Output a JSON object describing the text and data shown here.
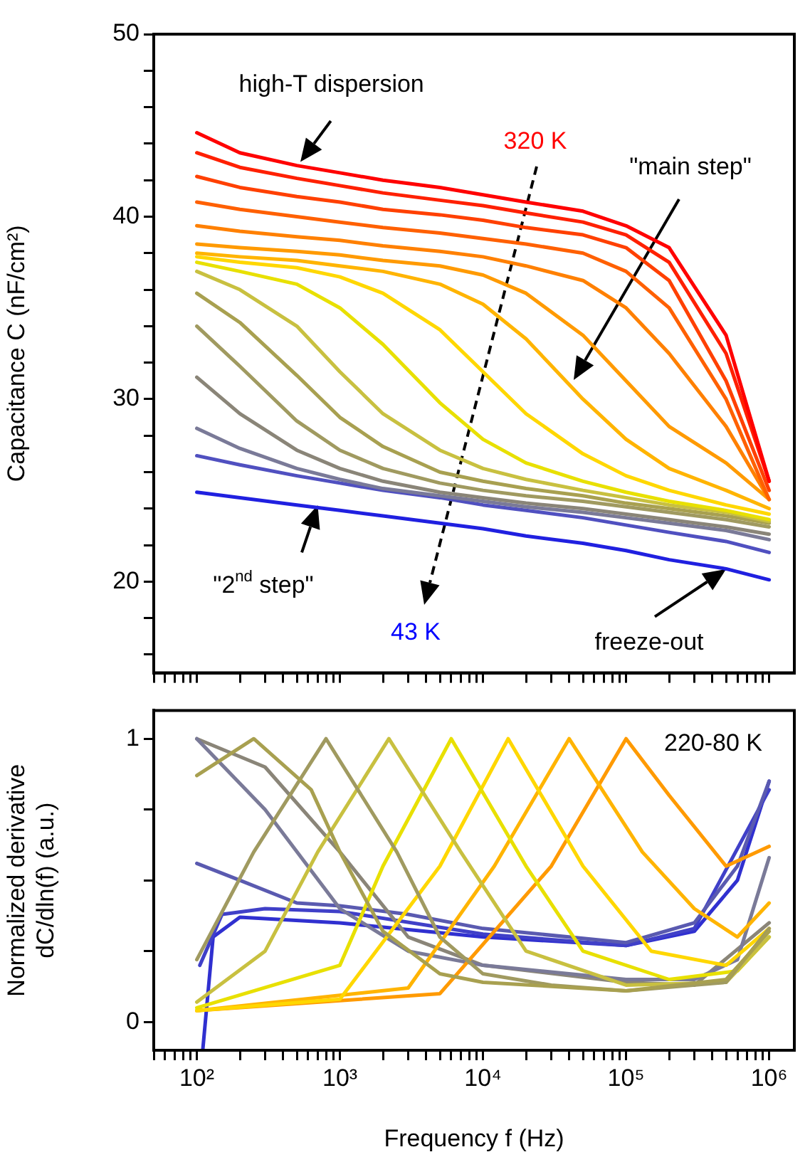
{
  "chart_data": [
    {
      "type": "line",
      "ylabel": "Capacitance C (nF/cm²)",
      "log": "x",
      "legend": false,
      "tick_labels": "y",
      "xlim": [
        50,
        1500000
      ],
      "ylim": [
        15,
        50
      ],
      "xticks": [
        {
          "value": 50,
          "label": null
        },
        {
          "value": 60,
          "label": null
        },
        {
          "value": 70,
          "label": null
        },
        {
          "value": 80,
          "label": null
        },
        {
          "value": 90,
          "label": null
        },
        {
          "value": 100,
          "label": null
        },
        {
          "value": 200,
          "label": null
        },
        {
          "value": 300,
          "label": null
        },
        {
          "value": 400,
          "label": null
        },
        {
          "value": 500,
          "label": null
        },
        {
          "value": 600,
          "label": null
        },
        {
          "value": 700,
          "label": null
        },
        {
          "value": 800,
          "label": null
        },
        {
          "value": 900,
          "label": null
        },
        {
          "value": 1000,
          "label": null
        },
        {
          "value": 2000,
          "label": null
        },
        {
          "value": 3000,
          "label": null
        },
        {
          "value": 4000,
          "label": null
        },
        {
          "value": 5000,
          "label": null
        },
        {
          "value": 6000,
          "label": null
        },
        {
          "value": 7000,
          "label": null
        },
        {
          "value": 8000,
          "label": null
        },
        {
          "value": 9000,
          "label": null
        },
        {
          "value": 10000,
          "label": null
        },
        {
          "value": 20000,
          "label": null
        },
        {
          "value": 30000,
          "label": null
        },
        {
          "value": 40000,
          "label": null
        },
        {
          "value": 50000,
          "label": null
        },
        {
          "value": 60000,
          "label": null
        },
        {
          "value": 70000,
          "label": null
        },
        {
          "value": 80000,
          "label": null
        },
        {
          "value": 90000,
          "label": null
        },
        {
          "value": 100000,
          "label": null
        },
        {
          "value": 200000,
          "label": null
        },
        {
          "value": 300000,
          "label": null
        },
        {
          "value": 400000,
          "label": null
        },
        {
          "value": 500000,
          "label": null
        },
        {
          "value": 600000,
          "label": null
        },
        {
          "value": 700000,
          "label": null
        },
        {
          "value": 800000,
          "label": null
        },
        {
          "value": 900000,
          "label": null
        },
        {
          "value": 1000000,
          "label": null
        }
      ],
      "yticks": [
        {
          "value": 16,
          "label": null
        },
        {
          "value": 18,
          "label": null
        },
        20,
        {
          "value": 22,
          "label": null
        },
        {
          "value": 24,
          "label": null
        },
        {
          "value": 26,
          "label": null
        },
        {
          "value": 28,
          "label": null
        },
        30,
        {
          "value": 32,
          "label": null
        },
        {
          "value": 34,
          "label": null
        },
        {
          "value": 36,
          "label": null
        },
        {
          "value": 38,
          "label": null
        },
        40,
        {
          "value": 42,
          "label": null
        },
        {
          "value": 44,
          "label": null
        },
        {
          "value": 46,
          "label": null
        },
        {
          "value": 48,
          "label": null
        },
        50
      ],
      "annotations": [
        {
          "text": "high-T dispersion",
          "x": 525,
          "y": 43.0
        },
        "320 K",
        "\"main step\"",
        {
          "text": "\"2$^{nd}$ step\"",
          "x": 700,
          "y": 24.2
        },
        "43 K",
        {
          "text": "freeze-out",
          "x": 500000,
          "y": 20.7
        }
      ],
      "x": [
        100,
        200,
        500,
        1000,
        2000,
        5000,
        10000,
        20000,
        50000,
        100000,
        200000,
        500000,
        1000000
      ],
      "series": [
        {
          "color": "#ff0000",
          "values": [
            44.6,
            43.5,
            42.8,
            42.4,
            42.0,
            41.6,
            41.2,
            40.8,
            40.3,
            39.5,
            38.3,
            33.5,
            25.5
          ]
        },
        {
          "color": "#ff2000",
          "values": [
            43.5,
            42.7,
            42.1,
            41.7,
            41.3,
            40.9,
            40.6,
            40.2,
            39.7,
            39.0,
            37.5,
            32.5,
            25.5
          ]
        },
        {
          "color": "#ff4000",
          "values": [
            42.2,
            41.6,
            41.1,
            40.8,
            40.4,
            40.1,
            39.8,
            39.4,
            39.0,
            38.3,
            36.5,
            31.0,
            25.0
          ]
        },
        {
          "color": "#ff6000",
          "values": [
            40.8,
            40.4,
            40.0,
            39.7,
            39.4,
            39.1,
            38.8,
            38.5,
            38.0,
            37.0,
            35.0,
            30.0,
            24.5
          ]
        },
        {
          "color": "#ff8000",
          "values": [
            39.5,
            39.2,
            38.9,
            38.7,
            38.4,
            38.1,
            37.8,
            37.3,
            36.5,
            35.0,
            32.5,
            28.5,
            24.5
          ]
        },
        {
          "color": "#ff9a00",
          "values": [
            38.5,
            38.3,
            38.1,
            37.9,
            37.6,
            37.3,
            36.8,
            35.8,
            33.5,
            31.0,
            28.5,
            26.5,
            24.5
          ]
        },
        {
          "color": "#ffb400",
          "values": [
            38.0,
            37.8,
            37.6,
            37.3,
            37.0,
            36.3,
            35.2,
            33.3,
            30.0,
            27.8,
            26.2,
            25.0,
            24.0
          ]
        },
        {
          "color": "#ffd700",
          "values": [
            37.8,
            37.5,
            37.2,
            36.7,
            35.8,
            33.8,
            31.5,
            29.2,
            27.0,
            25.8,
            25.0,
            24.2,
            23.7
          ]
        },
        {
          "color": "#e8e000",
          "values": [
            37.5,
            37.0,
            36.3,
            35.0,
            33.0,
            29.8,
            27.8,
            26.5,
            25.5,
            24.9,
            24.4,
            23.9,
            23.4
          ]
        },
        {
          "color": "#c8c040",
          "values": [
            37.0,
            36.0,
            34.0,
            31.5,
            29.2,
            27.2,
            26.2,
            25.6,
            25.0,
            24.6,
            24.2,
            23.8,
            23.3
          ]
        },
        {
          "color": "#a8a050",
          "values": [
            35.8,
            34.2,
            31.3,
            29.0,
            27.4,
            26.0,
            25.5,
            25.1,
            24.7,
            24.3,
            24.0,
            23.6,
            23.2
          ]
        },
        {
          "color": "#a09a60",
          "values": [
            34.0,
            31.8,
            28.8,
            27.2,
            26.2,
            25.4,
            25.0,
            24.7,
            24.4,
            24.1,
            23.8,
            23.4,
            23.0
          ]
        },
        {
          "color": "#8a8578",
          "values": [
            31.2,
            29.2,
            27.2,
            26.2,
            25.5,
            24.9,
            24.6,
            24.3,
            24.0,
            23.7,
            23.4,
            23.0,
            22.6
          ]
        },
        {
          "color": "#7a7a98",
          "values": [
            28.4,
            27.3,
            26.2,
            25.6,
            25.1,
            24.7,
            24.4,
            24.1,
            23.8,
            23.5,
            23.2,
            22.8,
            22.3
          ]
        },
        {
          "color": "#5050c0",
          "values": [
            26.9,
            26.4,
            25.8,
            25.4,
            25.0,
            24.6,
            24.2,
            23.9,
            23.5,
            23.1,
            22.7,
            22.2,
            21.6
          ]
        },
        {
          "color": "#2020e0",
          "values": [
            24.9,
            24.6,
            24.2,
            23.9,
            23.6,
            23.2,
            22.9,
            22.5,
            22.1,
            21.7,
            21.2,
            20.7,
            20.1
          ]
        }
      ]
    },
    {
      "type": "line",
      "xlabel": "Frequency f (Hz)",
      "ylabel": "Normalized derivative\ndC/dln(f) (a.u.)",
      "log": "x",
      "legend": false,
      "xlim": [
        50,
        1500000
      ],
      "ylim": [
        -0.1,
        1.1
      ],
      "xticks": [
        {
          "value": 50,
          "label": null
        },
        {
          "value": 60,
          "label": null
        },
        {
          "value": 70,
          "label": null
        },
        {
          "value": 80,
          "label": null
        },
        {
          "value": 90,
          "label": null
        },
        {
          "value": 100,
          "label": "10²"
        },
        {
          "value": 200,
          "label": null
        },
        {
          "value": 300,
          "label": null
        },
        {
          "value": 400,
          "label": null
        },
        {
          "value": 500,
          "label": null
        },
        {
          "value": 600,
          "label": null
        },
        {
          "value": 700,
          "label": null
        },
        {
          "value": 800,
          "label": null
        },
        {
          "value": 900,
          "label": null
        },
        {
          "value": 1000,
          "label": "10³"
        },
        {
          "value": 2000,
          "label": null
        },
        {
          "value": 3000,
          "label": null
        },
        {
          "value": 4000,
          "label": null
        },
        {
          "value": 5000,
          "label": null
        },
        {
          "value": 6000,
          "label": null
        },
        {
          "value": 7000,
          "label": null
        },
        {
          "value": 8000,
          "label": null
        },
        {
          "value": 9000,
          "label": null
        },
        {
          "value": 10000,
          "label": "10⁴"
        },
        {
          "value": 20000,
          "label": null
        },
        {
          "value": 30000,
          "label": null
        },
        {
          "value": 40000,
          "label": null
        },
        {
          "value": 50000,
          "label": null
        },
        {
          "value": 60000,
          "label": null
        },
        {
          "value": 70000,
          "label": null
        },
        {
          "value": 80000,
          "label": null
        },
        {
          "value": 90000,
          "label": null
        },
        {
          "value": 100000,
          "label": "10⁵"
        },
        {
          "value": 200000,
          "label": null
        },
        {
          "value": 300000,
          "label": null
        },
        {
          "value": 400000,
          "label": null
        },
        {
          "value": 500000,
          "label": null
        },
        {
          "value": 600000,
          "label": null
        },
        {
          "value": 700000,
          "label": null
        },
        {
          "value": 800000,
          "label": null
        },
        {
          "value": 900000,
          "label": null
        },
        {
          "value": 1000000,
          "label": "10⁶"
        }
      ],
      "yticks": [
        0,
        {
          "value": 0.25,
          "label": null
        },
        {
          "value": 0.5,
          "label": null
        },
        {
          "value": 0.75,
          "label": null
        },
        1
      ],
      "annotations": [
        "220-80 K"
      ],
      "series": [
        {
          "color": "#a8a050",
          "x": [
            100,
            250,
            630,
            1000,
            2000,
            5000,
            10000,
            100000,
            500000,
            1000000
          ],
          "values": [
            0.87,
            1,
            0.82,
            0.6,
            0.32,
            0.17,
            0.14,
            0.11,
            0.15,
            0.32
          ]
        },
        {
          "color": "#a09a60",
          "x": [
            100,
            250,
            800,
            2500,
            5000,
            10000,
            30000,
            100000,
            500000,
            1000000
          ],
          "values": [
            0.22,
            0.6,
            1,
            0.6,
            0.3,
            0.17,
            0.13,
            0.11,
            0.14,
            0.33
          ]
        },
        {
          "color": "#c8c040",
          "x": [
            100,
            300,
            700,
            2200,
            7000,
            20000,
            100000,
            500000,
            1000000
          ],
          "values": [
            0.07,
            0.25,
            0.6,
            1,
            0.6,
            0.25,
            0.13,
            0.14,
            0.3
          ]
        },
        {
          "color": "#e8e000",
          "x": [
            100,
            1000,
            2000,
            6000,
            20000,
            50000,
            200000,
            600000,
            1000000
          ],
          "values": [
            0.05,
            0.2,
            0.55,
            1,
            0.55,
            0.25,
            0.15,
            0.18,
            0.3
          ]
        },
        {
          "color": "#ffd700",
          "x": [
            100,
            1000,
            5000,
            15000,
            50000,
            150000,
            500000,
            1000000
          ],
          "values": [
            0.04,
            0.08,
            0.55,
            1,
            0.55,
            0.25,
            0.2,
            0.33
          ]
        },
        {
          "color": "#ffb400",
          "x": [
            100,
            3000,
            12000,
            40000,
            130000,
            300000,
            600000,
            1000000
          ],
          "values": [
            0.04,
            0.12,
            0.55,
            1,
            0.6,
            0.4,
            0.3,
            0.42
          ]
        },
        {
          "color": "#ff9a00",
          "x": [
            100,
            5000,
            30000,
            100000,
            200000,
            500000,
            1000000
          ],
          "values": [
            0.04,
            0.1,
            0.55,
            1,
            0.8,
            0.55,
            0.62
          ]
        },
        {
          "color": "#7a7a98",
          "x": [
            100,
            300,
            1000,
            3000,
            10000,
            100000,
            300000,
            600000,
            1000000
          ],
          "values": [
            1,
            0.75,
            0.4,
            0.25,
            0.2,
            0.15,
            0.15,
            0.22,
            0.58
          ]
        },
        {
          "color": "#8a8578",
          "x": [
            100,
            300,
            1000,
            3000,
            10000,
            100000,
            300000,
            1000000
          ],
          "values": [
            1,
            0.9,
            0.6,
            0.3,
            0.2,
            0.14,
            0.13,
            0.35
          ]
        },
        {
          "color": "#5a5ab0",
          "x": [
            100,
            200,
            500,
            1000,
            3000,
            10000,
            100000,
            300000,
            600000,
            1000000
          ],
          "values": [
            0.56,
            0.5,
            0.42,
            0.41,
            0.38,
            0.33,
            0.28,
            0.35,
            0.55,
            0.85
          ]
        },
        {
          "color": "#4040c8",
          "x": [
            105,
            150,
            300,
            1000,
            10000,
            100000,
            300000,
            1000000
          ],
          "values": [
            0.2,
            0.38,
            0.4,
            0.39,
            0.31,
            0.27,
            0.33,
            0.82
          ]
        },
        {
          "color": "#3030d0",
          "x": [
            110,
            130,
            200,
            1000,
            10000,
            100000,
            300000,
            600000,
            1000000
          ],
          "values": [
            -0.1,
            0.3,
            0.37,
            0.35,
            0.3,
            0.27,
            0.32,
            0.5,
            0.85
          ]
        }
      ]
    }
  ]
}
